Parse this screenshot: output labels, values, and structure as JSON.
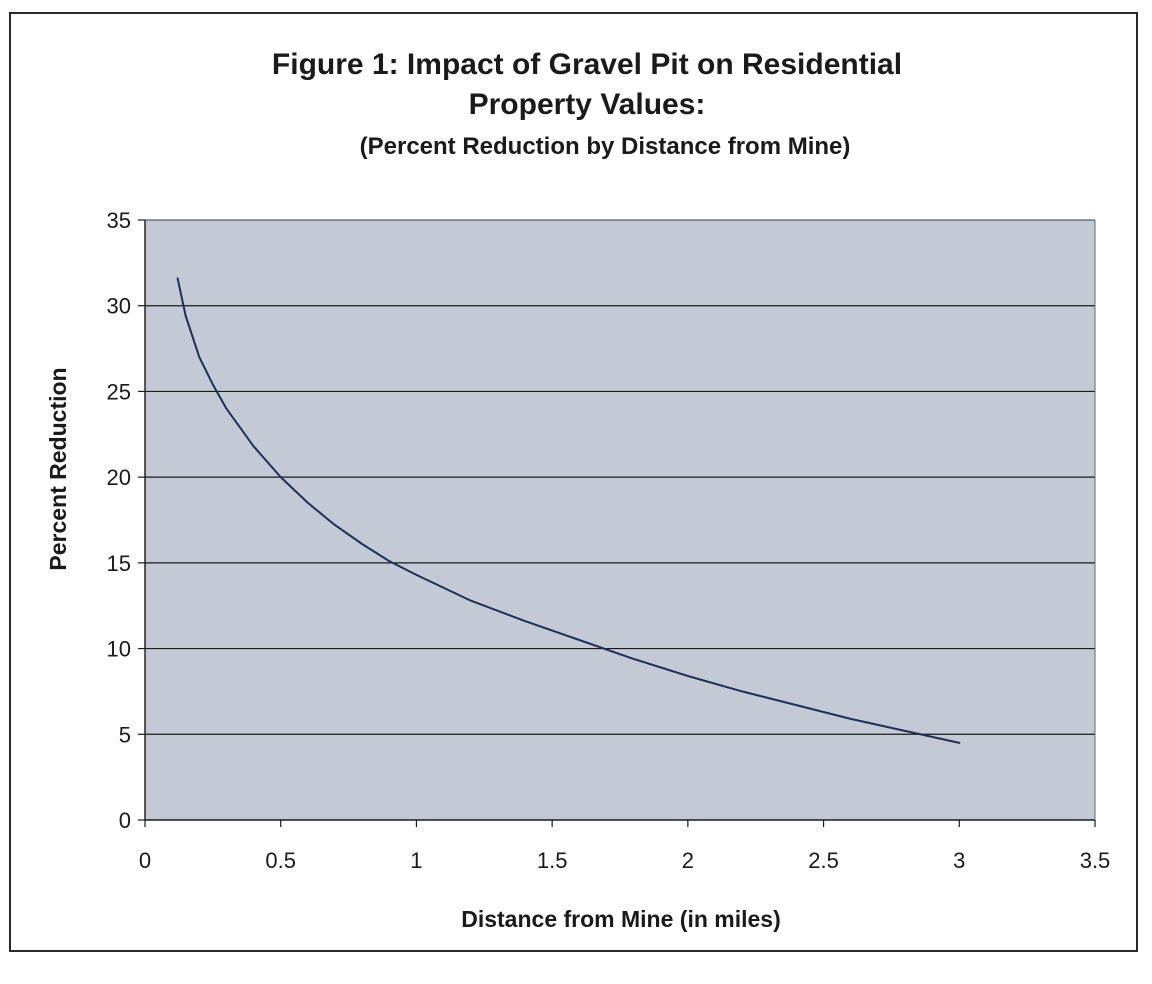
{
  "chart_data": {
    "type": "line",
    "title_lines": [
      "Figure 1: Impact of Gravel Pit on Residential",
      "Property Values:"
    ],
    "subtitle": "(Percent Reduction by Distance from Mine)",
    "xlabel": "Distance from Mine (in miles)",
    "ylabel": "Percent Reduction",
    "xlim": [
      0,
      3.5
    ],
    "ylim": [
      0,
      35
    ],
    "x_ticks": [
      "0",
      "0.5",
      "1",
      "1.5",
      "2",
      "2.5",
      "3",
      "3.5"
    ],
    "y_ticks": [
      "0",
      "5",
      "10",
      "15",
      "20",
      "25",
      "30",
      "35"
    ],
    "grid": "horizontal",
    "plot_background": "#c3cad6",
    "line_color": "#1f2f5a",
    "series": [
      {
        "x": [
          0.12,
          0.15,
          0.2,
          0.25,
          0.3,
          0.4,
          0.5,
          0.6,
          0.7,
          0.8,
          0.9,
          1.0,
          1.2,
          1.4,
          1.6,
          1.8,
          2.0,
          2.2,
          2.4,
          2.6,
          2.8,
          3.0
        ],
        "values": [
          31.6,
          29.4,
          27.0,
          25.4,
          24.0,
          21.8,
          20.0,
          18.5,
          17.2,
          16.1,
          15.1,
          14.3,
          12.8,
          11.6,
          10.5,
          9.4,
          8.4,
          7.5,
          6.7,
          5.9,
          5.2,
          4.5
        ]
      }
    ]
  }
}
